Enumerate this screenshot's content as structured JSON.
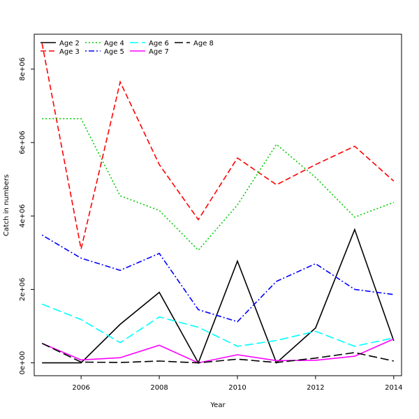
{
  "chart_data": {
    "type": "line",
    "title": "",
    "xlabel": "Year",
    "ylabel": "Catch in numbers",
    "xlim": [
      2004.8,
      2014.2
    ],
    "ylim": [
      -350000,
      8950000
    ],
    "x_ticks": [
      2006,
      2008,
      2010,
      2012,
      2014
    ],
    "x_tick_labels": [
      "2006",
      "2008",
      "2010",
      "2012",
      "2014"
    ],
    "y_ticks": [
      0,
      2000000,
      4000000,
      6000000,
      8000000
    ],
    "y_tick_labels": [
      "0e+00",
      "2e+06",
      "4e+06",
      "6e+06",
      "8e+06"
    ],
    "legend_position": "top-left",
    "grid": false,
    "x": [
      2005,
      2006,
      2007,
      2008,
      2009,
      2010,
      2011,
      2012,
      2013,
      2014
    ],
    "series": [
      {
        "name": "Age 2",
        "color": "#000000",
        "dash": "solid",
        "values": [
          0,
          0,
          1050000,
          1920000,
          0,
          2770000,
          0,
          950000,
          3630000,
          600000
        ]
      },
      {
        "name": "Age 3",
        "color": "#ff0000",
        "dash": "dashed",
        "values": [
          8700000,
          3100000,
          7650000,
          5400000,
          3900000,
          5580000,
          4850000,
          5400000,
          5900000,
          4950000
        ]
      },
      {
        "name": "Age 4",
        "color": "#00cd00",
        "dash": "dotted",
        "values": [
          6650000,
          6650000,
          4550000,
          4150000,
          3070000,
          4300000,
          5950000,
          5050000,
          3970000,
          4370000
        ]
      },
      {
        "name": "Age 5",
        "color": "#0000ff",
        "dash": "dotdash",
        "values": [
          3480000,
          2850000,
          2520000,
          2980000,
          1450000,
          1120000,
          2220000,
          2700000,
          2000000,
          1860000
        ]
      },
      {
        "name": "Age 6",
        "color": "#00ffff",
        "dash": "longdash",
        "values": [
          1600000,
          1180000,
          550000,
          1250000,
          970000,
          450000,
          610000,
          860000,
          450000,
          680000
        ]
      },
      {
        "name": "Age 7",
        "color": "#ff00ff",
        "dash": "solid",
        "values": [
          530000,
          80000,
          140000,
          480000,
          0,
          220000,
          60000,
          70000,
          180000,
          650000
        ]
      },
      {
        "name": "Age 8",
        "color": "#000000",
        "dash": "longdash",
        "values": [
          530000,
          20000,
          10000,
          50000,
          0,
          100000,
          10000,
          130000,
          280000,
          50000
        ]
      }
    ]
  }
}
